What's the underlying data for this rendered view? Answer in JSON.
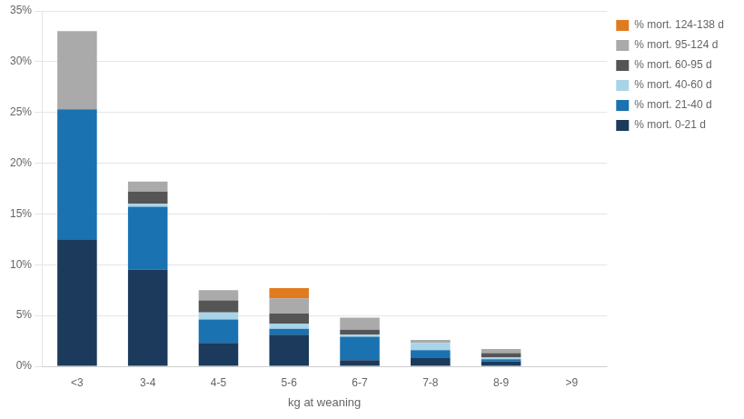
{
  "chart_data": {
    "type": "bar",
    "stacked": true,
    "xlabel": "kg at weaning",
    "categories": [
      "<3",
      "3-4",
      "4-5",
      "5-6",
      "6-7",
      "7-8",
      "8-9",
      ">9"
    ],
    "series": [
      {
        "name": "% mort. 0-21 d",
        "color": "#1b3a5c",
        "values": [
          12.5,
          9.5,
          2.3,
          3.1,
          0.6,
          0.8,
          0.5,
          0.0
        ]
      },
      {
        "name": "% mort. 21-40 d",
        "color": "#1a72b0",
        "values": [
          12.8,
          6.2,
          2.3,
          0.6,
          2.3,
          0.8,
          0.2,
          0.0
        ]
      },
      {
        "name": "% mort. 40-60 d",
        "color": "#a8d4e8",
        "values": [
          0.0,
          0.3,
          0.7,
          0.5,
          0.2,
          0.7,
          0.2,
          0.0
        ]
      },
      {
        "name": "% mort. 60-95 d",
        "color": "#555555",
        "values": [
          0.0,
          1.2,
          1.2,
          1.0,
          0.5,
          0.0,
          0.4,
          0.0
        ]
      },
      {
        "name": "% mort. 95-124 d",
        "color": "#aaaaaa",
        "values": [
          7.7,
          1.0,
          1.0,
          1.5,
          1.2,
          0.3,
          0.4,
          0.0
        ]
      },
      {
        "name": "% mort. 124-138 d",
        "color": "#e07b20",
        "values": [
          0.0,
          0.0,
          0.0,
          1.0,
          0.0,
          0.0,
          0.0,
          0.0
        ]
      }
    ],
    "ylim": [
      0,
      35
    ],
    "yticks": [
      {
        "value": 0,
        "label": "0%"
      },
      {
        "value": 5,
        "label": "5%"
      },
      {
        "value": 10,
        "label": "10%"
      },
      {
        "value": 15,
        "label": "15%"
      },
      {
        "value": 20,
        "label": "20%"
      },
      {
        "value": 25,
        "label": "25%"
      },
      {
        "value": 30,
        "label": "30%"
      },
      {
        "value": 35,
        "label": "35%"
      }
    ],
    "grid": true,
    "legend": "upper right"
  }
}
